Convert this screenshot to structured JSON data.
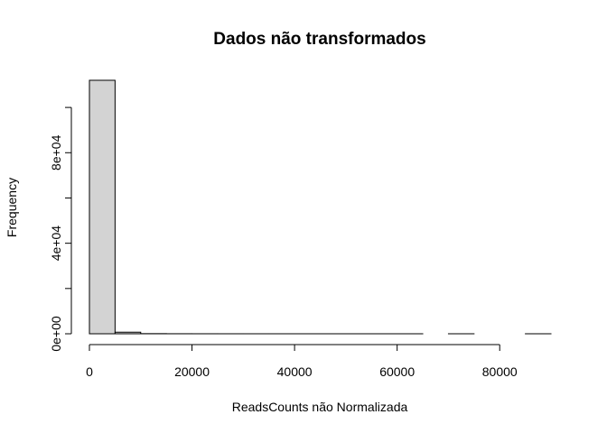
{
  "chart_data": {
    "type": "bar",
    "subtype": "histogram",
    "title": "Dados não transformados",
    "xlabel": "ReadsCounts não Normalizada",
    "ylabel": "Frequency",
    "x_tick_labels": [
      "0",
      "20000",
      "40000",
      "60000",
      "80000"
    ],
    "x_ticks": [
      0,
      20000,
      40000,
      60000,
      80000
    ],
    "y_tick_labels": [
      "0e+00",
      "4e+04",
      "8e+04"
    ],
    "y_ticks": [
      0,
      20000,
      40000,
      60000,
      80000,
      100000
    ],
    "y_labeled_ticks": [
      0,
      40000,
      80000
    ],
    "xlim": [
      0,
      90000
    ],
    "ylim": [
      0,
      112000
    ],
    "bin_width": 5000,
    "bins": [
      {
        "x0": 0,
        "x1": 5000,
        "count": 112000
      },
      {
        "x0": 5000,
        "x1": 10000,
        "count": 700
      },
      {
        "x0": 10000,
        "x1": 15000,
        "count": 60
      },
      {
        "x0": 15000,
        "x1": 20000,
        "count": 20
      },
      {
        "x0": 20000,
        "x1": 25000,
        "count": 10
      },
      {
        "x0": 25000,
        "x1": 30000,
        "count": 5
      },
      {
        "x0": 30000,
        "x1": 35000,
        "count": 3
      },
      {
        "x0": 35000,
        "x1": 40000,
        "count": 2
      },
      {
        "x0": 40000,
        "x1": 45000,
        "count": 1
      },
      {
        "x0": 45000,
        "x1": 50000,
        "count": 1
      },
      {
        "x0": 50000,
        "x1": 55000,
        "count": 1
      },
      {
        "x0": 55000,
        "x1": 60000,
        "count": 1
      },
      {
        "x0": 60000,
        "x1": 65000,
        "count": 1
      },
      {
        "x0": 65000,
        "x1": 70000,
        "count": 0
      },
      {
        "x0": 70000,
        "x1": 75000,
        "count": 1
      },
      {
        "x0": 75000,
        "x1": 80000,
        "count": 0
      },
      {
        "x0": 80000,
        "x1": 85000,
        "count": 0
      },
      {
        "x0": 85000,
        "x1": 90000,
        "count": 1
      }
    ],
    "bar_fill": "#d3d3d3",
    "bar_stroke": "#000000",
    "grid": false,
    "legend": "none"
  }
}
